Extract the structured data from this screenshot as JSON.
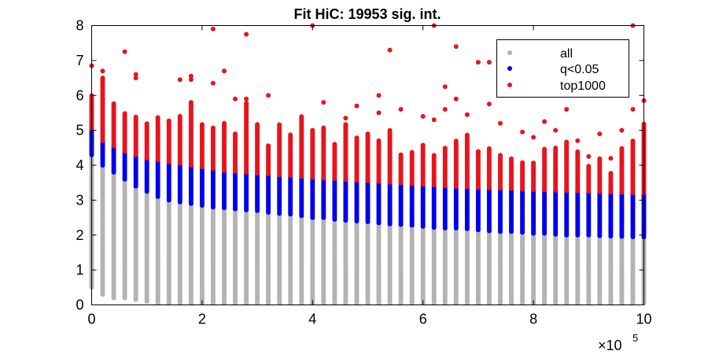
{
  "chart_data": {
    "type": "scatter",
    "title": "Fit HiC: 19953 sig. int.",
    "xlabel": "",
    "ylabel": "",
    "x_multiplier_label": "×10",
    "x_multiplier_exponent": "5",
    "xlim": [
      0,
      10
    ],
    "ylim": [
      0,
      8
    ],
    "x_ticks": [
      "0",
      "2",
      "4",
      "6",
      "8",
      "10"
    ],
    "y_ticks": [
      "0",
      "1",
      "2",
      "3",
      "4",
      "5",
      "6",
      "7",
      "8"
    ],
    "grid": false,
    "legend_position": "top-right",
    "distance_bins_x10e5": [
      0.0,
      0.2,
      0.4,
      0.6,
      0.8,
      1.0,
      1.2,
      1.4,
      1.6,
      1.8,
      2.0,
      2.2,
      2.4,
      2.6,
      2.8,
      3.0,
      3.2,
      3.4,
      3.6,
      3.8,
      4.0,
      4.2,
      4.4,
      4.6,
      4.8,
      5.0,
      5.2,
      5.4,
      5.6,
      5.8,
      6.0,
      6.2,
      6.4,
      6.6,
      6.8,
      7.0,
      7.2,
      7.4,
      7.6,
      7.8,
      8.0,
      8.2,
      8.4,
      8.6,
      8.8,
      9.0,
      9.2,
      9.4,
      9.6,
      9.8,
      10.0
    ],
    "series": [
      {
        "name": "all",
        "color": "#b3b3b3",
        "min_y": [
          0.5,
          0.3,
          0.2,
          0.2,
          0.15,
          0.1,
          0.05,
          0.05,
          0.05,
          0.05,
          0.05,
          0.05,
          0.05,
          0.05,
          0.05,
          0.05,
          0.05,
          0.05,
          0.05,
          0.05,
          0.05,
          0.05,
          0.05,
          0.05,
          0.05,
          0.05,
          0.05,
          0.05,
          0.05,
          0.05,
          0.05,
          0.05,
          0.05,
          0.05,
          0.05,
          0.05,
          0.05,
          0.05,
          0.05,
          0.05,
          0.05,
          0.05,
          0.05,
          0.05,
          0.05,
          0.05,
          0.05,
          0.05,
          0.05,
          0.05,
          0.05
        ],
        "max_y": [
          5.0,
          4.0,
          3.8,
          3.6,
          3.4,
          3.25,
          3.1,
          3.0,
          2.95,
          2.9,
          2.85,
          2.8,
          2.78,
          2.75,
          2.72,
          2.7,
          2.65,
          2.62,
          2.6,
          2.55,
          2.5,
          2.5,
          2.45,
          2.42,
          2.4,
          2.38,
          2.35,
          2.32,
          2.3,
          2.28,
          2.25,
          2.22,
          2.2,
          2.2,
          2.18,
          2.15,
          2.12,
          2.1,
          2.1,
          2.08,
          2.05,
          2.05,
          2.02,
          2.0,
          2.0,
          2.0,
          1.98,
          1.97,
          1.96,
          1.95,
          1.95
        ]
      },
      {
        "name": "q<0.05",
        "color": "#0000ee",
        "min_y": [
          4.3,
          4.0,
          3.8,
          3.6,
          3.4,
          3.25,
          3.1,
          3.0,
          2.95,
          2.9,
          2.85,
          2.8,
          2.78,
          2.75,
          2.72,
          2.7,
          2.65,
          2.62,
          2.6,
          2.55,
          2.5,
          2.5,
          2.45,
          2.42,
          2.4,
          2.38,
          2.35,
          2.32,
          2.3,
          2.28,
          2.25,
          2.22,
          2.2,
          2.2,
          2.18,
          2.15,
          2.12,
          2.1,
          2.1,
          2.08,
          2.05,
          2.05,
          2.02,
          2.0,
          2.0,
          2.0,
          1.98,
          1.97,
          1.96,
          1.95,
          1.95
        ],
        "max_y": [
          5.05,
          4.7,
          4.55,
          4.4,
          4.3,
          4.2,
          4.15,
          4.1,
          4.05,
          4.0,
          3.95,
          3.9,
          3.85,
          3.82,
          3.8,
          3.77,
          3.75,
          3.72,
          3.7,
          3.68,
          3.65,
          3.63,
          3.61,
          3.59,
          3.57,
          3.55,
          3.53,
          3.51,
          3.49,
          3.47,
          3.45,
          3.43,
          3.41,
          3.39,
          3.38,
          3.36,
          3.35,
          3.34,
          3.33,
          3.31,
          3.3,
          3.29,
          3.28,
          3.27,
          3.26,
          3.25,
          3.24,
          3.23,
          3.22,
          3.21,
          3.2
        ]
      },
      {
        "name": "top1000",
        "color": "#e8141c",
        "min_y": [
          5.05,
          4.7,
          4.55,
          4.4,
          4.3,
          4.2,
          4.15,
          4.1,
          4.05,
          4.0,
          3.95,
          3.9,
          3.85,
          3.82,
          3.8,
          3.77,
          3.75,
          3.72,
          3.7,
          3.68,
          3.65,
          3.63,
          3.61,
          3.59,
          3.57,
          3.55,
          3.53,
          3.51,
          3.49,
          3.47,
          3.45,
          3.43,
          3.41,
          3.39,
          3.38,
          3.36,
          3.35,
          3.34,
          3.33,
          3.31,
          3.3,
          3.29,
          3.28,
          3.27,
          3.26,
          3.25,
          3.24,
          3.23,
          3.22,
          3.21,
          3.2
        ],
        "max_y": [
          6.0,
          6.5,
          5.8,
          5.5,
          5.4,
          5.2,
          5.4,
          5.3,
          5.4,
          5.8,
          5.2,
          5.1,
          5.2,
          4.9,
          5.8,
          5.2,
          4.6,
          5.2,
          4.9,
          5.4,
          5.0,
          5.1,
          4.6,
          5.2,
          4.8,
          4.9,
          4.7,
          5.0,
          4.3,
          4.4,
          4.6,
          4.3,
          4.5,
          4.7,
          4.9,
          4.4,
          4.5,
          4.3,
          4.2,
          4.1,
          4.1,
          4.5,
          4.5,
          4.7,
          4.4,
          4.0,
          4.2,
          3.8,
          4.5,
          4.7,
          5.2
        ],
        "outliers": [
          [
            0.0,
            6.85
          ],
          [
            0.2,
            6.7
          ],
          [
            0.2,
            6.45
          ],
          [
            0.6,
            7.25
          ],
          [
            0.8,
            6.6
          ],
          [
            0.8,
            6.5
          ],
          [
            1.6,
            6.45
          ],
          [
            1.8,
            6.45
          ],
          [
            1.8,
            6.55
          ],
          [
            2.2,
            7.9
          ],
          [
            2.2,
            6.35
          ],
          [
            2.4,
            6.7
          ],
          [
            2.6,
            5.9
          ],
          [
            2.8,
            7.75
          ],
          [
            2.8,
            5.9
          ],
          [
            3.2,
            6.0
          ],
          [
            4.0,
            8.0
          ],
          [
            4.2,
            5.8
          ],
          [
            4.6,
            5.35
          ],
          [
            4.8,
            5.7
          ],
          [
            5.2,
            5.5
          ],
          [
            5.2,
            6.0
          ],
          [
            5.4,
            7.3
          ],
          [
            5.6,
            5.6
          ],
          [
            6.0,
            5.4
          ],
          [
            6.2,
            8.0
          ],
          [
            6.2,
            5.3
          ],
          [
            6.4,
            6.25
          ],
          [
            6.4,
            5.6
          ],
          [
            6.6,
            7.4
          ],
          [
            6.6,
            5.9
          ],
          [
            6.8,
            5.45
          ],
          [
            7.0,
            6.95
          ],
          [
            7.2,
            6.95
          ],
          [
            7.2,
            5.75
          ],
          [
            7.4,
            5.2
          ],
          [
            7.8,
            4.95
          ],
          [
            8.0,
            4.8
          ],
          [
            8.2,
            5.25
          ],
          [
            8.4,
            5.0
          ],
          [
            8.6,
            5.6
          ],
          [
            8.8,
            4.7
          ],
          [
            9.0,
            4.25
          ],
          [
            9.2,
            4.9
          ],
          [
            9.4,
            4.2
          ],
          [
            9.6,
            5.0
          ],
          [
            9.8,
            8.0
          ],
          [
            9.8,
            5.6
          ],
          [
            10.0,
            5.85
          ]
        ]
      }
    ]
  }
}
